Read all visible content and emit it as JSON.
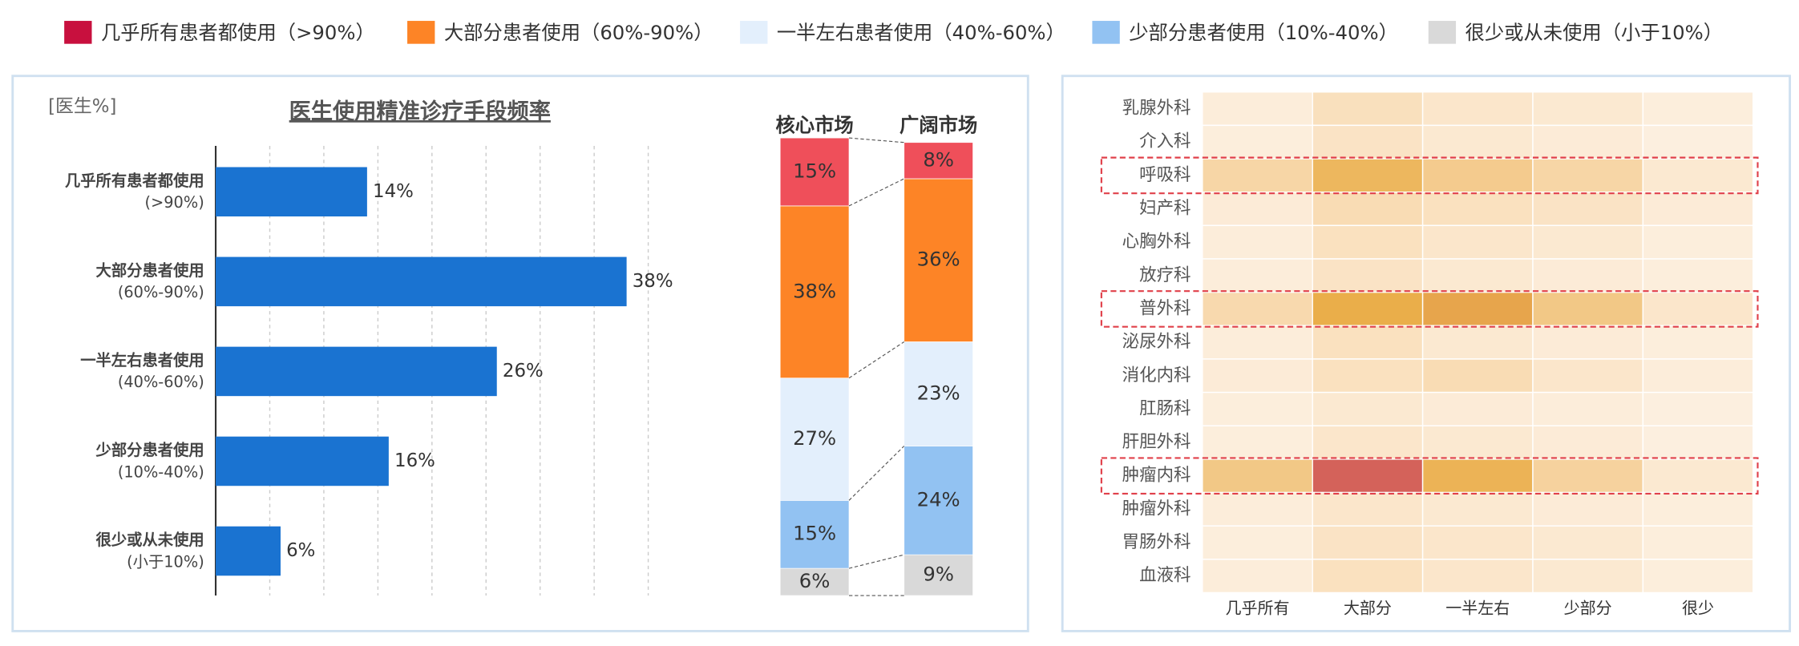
{
  "legend": [
    {
      "label": "几乎所有患者都使用（>90%）",
      "color": "#c8103e"
    },
    {
      "label": "大部分患者使用（60%-90%）",
      "color": "#fd8426"
    },
    {
      "label": "一半左右患者使用（40%-60%）",
      "color": "#e3effc"
    },
    {
      "label": "少部分患者使用（10%-40%）",
      "color": "#92c2f2"
    },
    {
      "label": "很少或从未使用（小于10%）",
      "color": "#d9d9d9"
    }
  ],
  "chart_data": [
    {
      "type": "bar",
      "title": "医生使用精准诊疗手段频率",
      "y_label": "[医生%]",
      "categories": [
        [
          "几乎所有患者都使用",
          "(>90%)"
        ],
        [
          "大部分患者使用",
          "(60%-90%)"
        ],
        [
          "一半左右患者使用",
          "(40%-60%)"
        ],
        [
          "少部分患者使用",
          "(10%-40%)"
        ],
        [
          "很少或从未使用",
          "(小于10%)"
        ]
      ],
      "values": [
        14,
        38,
        26,
        16,
        6
      ],
      "value_labels": [
        "14%",
        "38%",
        "26%",
        "16%",
        "6%"
      ],
      "color": "#1a73d1",
      "xlim": [
        0,
        40
      ],
      "xticks": [
        0,
        5,
        10,
        15,
        20,
        25,
        30,
        35,
        40
      ],
      "grid": true
    },
    {
      "type": "stacked_column",
      "categories": [
        "核心市场",
        "广阔市场"
      ],
      "ylim": [
        0,
        100
      ],
      "series": [
        {
          "color": "#d9d9d9",
          "values": [
            6,
            9
          ],
          "value_labels": [
            "6%",
            "9%"
          ]
        },
        {
          "color": "#92c2f2",
          "values": [
            15,
            24
          ],
          "value_labels": [
            "15%",
            "24%"
          ]
        },
        {
          "color": "#e3effc",
          "values": [
            27,
            23
          ],
          "value_labels": [
            "27%",
            "23%"
          ]
        },
        {
          "color": "#fd8426",
          "values": [
            38,
            36
          ],
          "value_labels": [
            "38%",
            "36%"
          ]
        },
        {
          "color": "#ef4f5a",
          "values": [
            15,
            8
          ],
          "value_labels": [
            "15%",
            "8%"
          ]
        }
      ]
    },
    {
      "type": "heatmap",
      "rows": [
        "乳腺外科",
        "介入科",
        "呼吸科",
        "妇产科",
        "心胸外科",
        "放疗科",
        "普外科",
        "泌尿外科",
        "消化内科",
        "肛肠科",
        "肝胆外科",
        "肿瘤内科",
        "肿瘤外科",
        "胃肠外科",
        "血液科"
      ],
      "columns": [
        "几乎所有",
        "大部分",
        "一半左右",
        "少部分",
        "很少"
      ],
      "values": [
        [
          5,
          15,
          10,
          8,
          4
        ],
        [
          4,
          12,
          8,
          6,
          3
        ],
        [
          22,
          40,
          28,
          22,
          8
        ],
        [
          6,
          18,
          14,
          12,
          6
        ],
        [
          5,
          14,
          10,
          8,
          4
        ],
        [
          5,
          12,
          8,
          6,
          4
        ],
        [
          20,
          45,
          48,
          30,
          10
        ],
        [
          5,
          14,
          8,
          6,
          4
        ],
        [
          6,
          14,
          18,
          10,
          5
        ],
        [
          4,
          8,
          6,
          5,
          3
        ],
        [
          4,
          10,
          8,
          6,
          3
        ],
        [
          30,
          70,
          42,
          24,
          8
        ],
        [
          5,
          10,
          8,
          6,
          4
        ],
        [
          4,
          12,
          10,
          8,
          4
        ],
        [
          5,
          14,
          10,
          8,
          4
        ]
      ],
      "color_scale": [
        [
          0,
          "#fdf3e8"
        ],
        [
          20,
          "#f8d9ae"
        ],
        [
          45,
          "#eaae4a"
        ],
        [
          70,
          "#d4625a"
        ]
      ],
      "highlight_rows": [
        2,
        6,
        11
      ],
      "highlight_color": "#e0404a"
    }
  ]
}
